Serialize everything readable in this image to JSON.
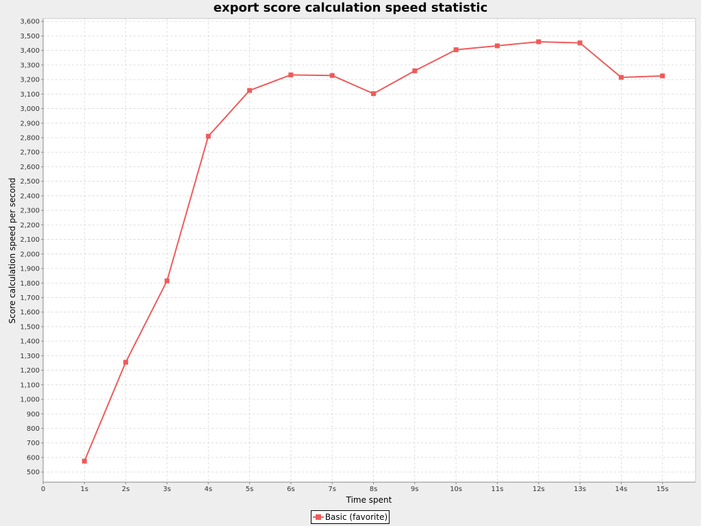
{
  "chart_data": {
    "type": "line",
    "title": "export score calculation speed statistic",
    "xlabel": "Time spent",
    "ylabel": "Score calculation speed per second",
    "x_tick_labels": [
      "0",
      "1s",
      "2s",
      "3s",
      "4s",
      "5s",
      "6s",
      "7s",
      "8s",
      "9s",
      "10s",
      "11s",
      "12s",
      "13s",
      "14s",
      "15s"
    ],
    "x_range": [
      0,
      15.8
    ],
    "ylim": [
      430,
      3620
    ],
    "y_ticks": [
      500,
      600,
      700,
      800,
      900,
      1000,
      1100,
      1200,
      1300,
      1400,
      1500,
      1600,
      1700,
      1800,
      1900,
      2000,
      2100,
      2200,
      2300,
      2400,
      2500,
      2600,
      2700,
      2800,
      2900,
      3000,
      3100,
      3200,
      3300,
      3400,
      3500,
      3600
    ],
    "grid": true,
    "legend_position": "bottom-center",
    "series": [
      {
        "name": "Basic (favorite)",
        "color": "#f05a5a",
        "marker": "square",
        "x": [
          1,
          2,
          3,
          4,
          5,
          6,
          7,
          8,
          9,
          10,
          11,
          12,
          13,
          14,
          15
        ],
        "values": [
          575,
          1255,
          1815,
          2810,
          3125,
          3232,
          3228,
          3103,
          3260,
          3405,
          3432,
          3460,
          3452,
          3215,
          3225
        ]
      }
    ]
  }
}
